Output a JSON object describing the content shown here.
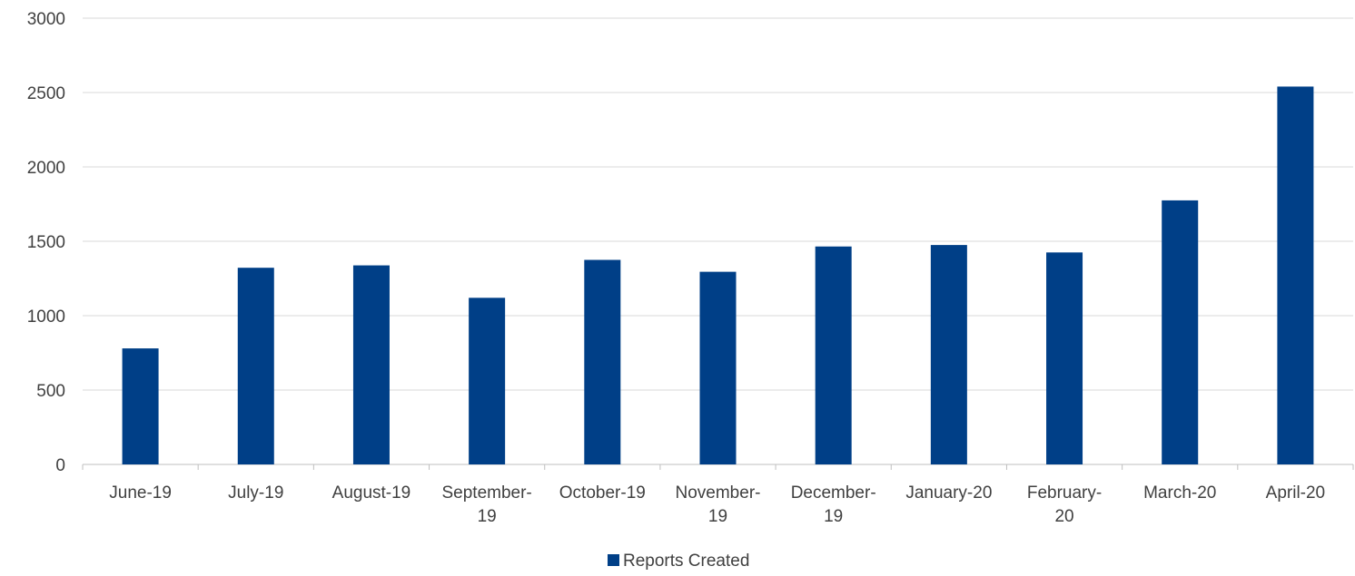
{
  "chart_data": {
    "type": "bar",
    "title": "",
    "xlabel": "",
    "ylabel": "",
    "categories": [
      [
        "June-19"
      ],
      [
        "July-19"
      ],
      [
        "August-19"
      ],
      [
        "September-",
        "19"
      ],
      [
        "October-19"
      ],
      [
        "November-",
        "19"
      ],
      [
        "December-",
        "19"
      ],
      [
        "January-20"
      ],
      [
        "February-",
        "20"
      ],
      [
        "March-20"
      ],
      [
        "April-20"
      ]
    ],
    "series": [
      {
        "name": "Reports Created",
        "color": "#003f87",
        "values": [
          780,
          1322,
          1338,
          1120,
          1375,
          1295,
          1465,
          1475,
          1425,
          1775,
          2540
        ]
      }
    ],
    "ylim": [
      0,
      3000
    ],
    "yticks": [
      "0",
      "500",
      "1000",
      "1500",
      "2000",
      "2500",
      "3000"
    ],
    "grid": true,
    "legend": "bottom-center"
  }
}
